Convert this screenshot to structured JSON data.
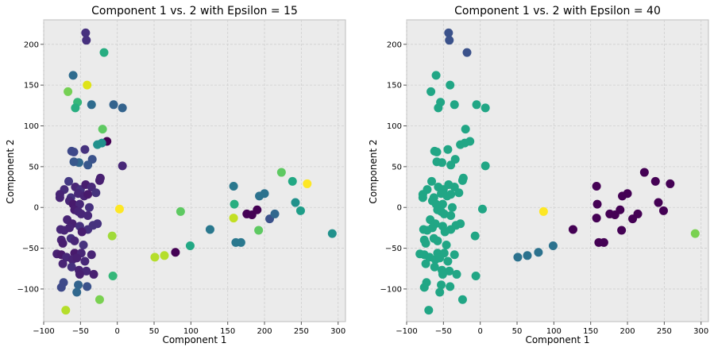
{
  "chart_data": [
    {
      "type": "scatter",
      "title": "Component 1 vs. 2 with Epsilon = 15",
      "xlabel": "Component 1",
      "ylabel": "Component 2",
      "xlim": [
        -100,
        310
      ],
      "ylim": [
        -140,
        230
      ],
      "xticks": [
        -100,
        -50,
        0,
        50,
        100,
        150,
        200,
        250,
        300
      ],
      "yticks": [
        -100,
        -50,
        0,
        50,
        100,
        150,
        200
      ],
      "grid": true,
      "points": [
        [
          -43,
          214,
          "#46307e"
        ],
        [
          -42,
          205,
          "#46307e"
        ],
        [
          -18,
          190,
          "#27ad81"
        ],
        [
          -60,
          162,
          "#2f6c8e"
        ],
        [
          -41,
          150,
          "#dfe318"
        ],
        [
          -67,
          142,
          "#75d054"
        ],
        [
          -54,
          129,
          "#35b779"
        ],
        [
          -57,
          122,
          "#28ae80"
        ],
        [
          -35,
          126,
          "#2f6c8e"
        ],
        [
          -5,
          126,
          "#33638d"
        ],
        [
          7,
          122,
          "#33638d"
        ],
        [
          -20,
          96,
          "#5ec962"
        ],
        [
          -14,
          81,
          "#440154"
        ],
        [
          -27,
          77,
          "#21918c"
        ],
        [
          -21,
          79,
          "#21918c"
        ],
        [
          -62,
          69,
          "#3e4989"
        ],
        [
          -59,
          68,
          "#3e4989"
        ],
        [
          -44,
          71,
          "#46327e"
        ],
        [
          -34,
          59,
          "#3b528b"
        ],
        [
          -52,
          55,
          "#31688e"
        ],
        [
          -59,
          56,
          "#38588c"
        ],
        [
          -40,
          52,
          "#38588c"
        ],
        [
          7,
          51,
          "#482878"
        ],
        [
          -72,
          22,
          "#472c7a"
        ],
        [
          -66,
          32,
          "#443983"
        ],
        [
          -57,
          25,
          "#482677"
        ],
        [
          -50,
          22,
          "#46307e"
        ],
        [
          -43,
          28,
          "#481d6f"
        ],
        [
          -35,
          25,
          "#482878"
        ],
        [
          -24,
          33,
          "#481f70"
        ],
        [
          -23,
          36,
          "#482071"
        ],
        [
          -78,
          16,
          "#482475"
        ],
        [
          -78,
          12,
          "#482475"
        ],
        [
          -63,
          12,
          "#46327e"
        ],
        [
          -53,
          17,
          "#482878"
        ],
        [
          -45,
          14,
          "#482475"
        ],
        [
          -40,
          16,
          "#481a6c"
        ],
        [
          -29,
          18,
          "#45337d"
        ],
        [
          -65,
          8,
          "#482677"
        ],
        [
          -60,
          4,
          "#481a6c"
        ],
        [
          -51,
          4,
          "#482878"
        ],
        [
          -38,
          0,
          "#46307e"
        ],
        [
          -58,
          -3,
          "#481d6f"
        ],
        [
          -53,
          -5,
          "#482475"
        ],
        [
          -49,
          -8,
          "#482677"
        ],
        [
          -40,
          -10,
          "#482878"
        ],
        [
          -68,
          -15,
          "#482475"
        ],
        [
          -61,
          -20,
          "#482071"
        ],
        [
          -51,
          -23,
          "#46307e"
        ],
        [
          -40,
          -27,
          "#46307e"
        ],
        [
          -33,
          -22,
          "#46337e"
        ],
        [
          -27,
          -20,
          "#46327e"
        ],
        [
          -77,
          -27,
          "#482878"
        ],
        [
          -72,
          -28,
          "#482677"
        ],
        [
          -65,
          -25,
          "#482475"
        ],
        [
          -48,
          -30,
          "#481d6f"
        ],
        [
          -63,
          -38,
          "#46307e"
        ],
        [
          -58,
          -41,
          "#482677"
        ],
        [
          -76,
          -40,
          "#482475"
        ],
        [
          -74,
          -44,
          "#481d6f"
        ],
        [
          -46,
          -46,
          "#46327e"
        ],
        [
          -82,
          -57,
          "#482071"
        ],
        [
          -76,
          -58,
          "#481a6c"
        ],
        [
          -69,
          -61,
          "#482878"
        ],
        [
          -58,
          -56,
          "#481a6c"
        ],
        [
          -49,
          -56,
          "#482677"
        ],
        [
          -35,
          -58,
          "#482475"
        ],
        [
          -61,
          -64,
          "#482475"
        ],
        [
          -55,
          -62,
          "#482071"
        ],
        [
          -44,
          -66,
          "#482878"
        ],
        [
          -74,
          -69,
          "#482475"
        ],
        [
          -62,
          -73,
          "#46307e"
        ],
        [
          -52,
          -77,
          "#482475"
        ],
        [
          -42,
          -78,
          "#482878"
        ],
        [
          -51,
          -82,
          "#482071"
        ],
        [
          -32,
          -82,
          "#482071"
        ],
        [
          -73,
          -92,
          "#3e4989"
        ],
        [
          -76,
          -98,
          "#3e4989"
        ],
        [
          -53,
          -95,
          "#33638d"
        ],
        [
          -41,
          -97,
          "#3b528b"
        ],
        [
          -55,
          -104,
          "#31688e"
        ],
        [
          -70,
          -126,
          "#b5de2b"
        ],
        [
          -24,
          -113,
          "#7ad151"
        ],
        [
          -7,
          -35,
          "#a0da39"
        ],
        [
          3,
          -2,
          "#fde725"
        ],
        [
          -6,
          -84,
          "#35b779"
        ],
        [
          51,
          -61,
          "#b5de2b"
        ],
        [
          64,
          -59,
          "#b5de2b"
        ],
        [
          79,
          -55,
          "#440154"
        ],
        [
          86,
          -5,
          "#5ec962"
        ],
        [
          99,
          -47,
          "#22a884"
        ],
        [
          126,
          -27,
          "#2a788e"
        ],
        [
          158,
          26,
          "#2a788e"
        ],
        [
          159,
          4,
          "#28ae80"
        ],
        [
          158,
          -13,
          "#c2df23"
        ],
        [
          161,
          -43,
          "#2a788e"
        ],
        [
          168,
          -43,
          "#2a788e"
        ],
        [
          176,
          -8,
          "#440154"
        ],
        [
          183,
          -9,
          "#440154"
        ],
        [
          190,
          -3,
          "#440154"
        ],
        [
          192,
          -28,
          "#5ec962"
        ],
        [
          193,
          14,
          "#2c728e"
        ],
        [
          200,
          17,
          "#2c728e"
        ],
        [
          207,
          -14,
          "#3b528b"
        ],
        [
          214,
          -8,
          "#31688e"
        ],
        [
          223,
          43,
          "#5ec962"
        ],
        [
          238,
          32,
          "#22a884"
        ],
        [
          242,
          6,
          "#21918c"
        ],
        [
          249,
          -4,
          "#1f9e89"
        ],
        [
          258,
          29,
          "#fde725"
        ],
        [
          292,
          -32,
          "#21918c"
        ]
      ]
    },
    {
      "type": "scatter",
      "title": "Component 1 vs. 2 with Epsilon = 40",
      "xlabel": "Component 1",
      "ylabel": "Component 2",
      "xlim": [
        -100,
        310
      ],
      "ylim": [
        -140,
        230
      ],
      "xticks": [
        -100,
        -50,
        0,
        50,
        100,
        150,
        200,
        250,
        300
      ],
      "yticks": [
        -100,
        -50,
        0,
        50,
        100,
        150,
        200
      ],
      "grid": true,
      "points": [
        [
          -43,
          214,
          "#3b528b"
        ],
        [
          -42,
          205,
          "#3b528b"
        ],
        [
          -18,
          190,
          "#3b528b"
        ],
        [
          -60,
          162,
          "#21a685"
        ],
        [
          -41,
          150,
          "#21a685"
        ],
        [
          -67,
          142,
          "#21a685"
        ],
        [
          -54,
          129,
          "#21a685"
        ],
        [
          -57,
          122,
          "#21a685"
        ],
        [
          -35,
          126,
          "#21a685"
        ],
        [
          -5,
          126,
          "#21a685"
        ],
        [
          7,
          122,
          "#21a685"
        ],
        [
          -20,
          96,
          "#21a685"
        ],
        [
          -14,
          81,
          "#21a685"
        ],
        [
          -27,
          77,
          "#21a685"
        ],
        [
          -21,
          79,
          "#21a685"
        ],
        [
          -62,
          69,
          "#21a685"
        ],
        [
          -59,
          68,
          "#21a685"
        ],
        [
          -44,
          71,
          "#21a685"
        ],
        [
          -34,
          59,
          "#21a685"
        ],
        [
          -52,
          55,
          "#21a685"
        ],
        [
          -59,
          56,
          "#21a685"
        ],
        [
          -40,
          52,
          "#21a685"
        ],
        [
          7,
          51,
          "#21a685"
        ],
        [
          -72,
          22,
          "#21a685"
        ],
        [
          -66,
          32,
          "#21a685"
        ],
        [
          -57,
          25,
          "#21a685"
        ],
        [
          -50,
          22,
          "#21a685"
        ],
        [
          -43,
          28,
          "#21a685"
        ],
        [
          -35,
          25,
          "#21a685"
        ],
        [
          -24,
          33,
          "#21a685"
        ],
        [
          -23,
          36,
          "#21a685"
        ],
        [
          -78,
          16,
          "#21a685"
        ],
        [
          -78,
          12,
          "#21a685"
        ],
        [
          -63,
          12,
          "#21a685"
        ],
        [
          -53,
          17,
          "#21a685"
        ],
        [
          -45,
          14,
          "#21a685"
        ],
        [
          -40,
          16,
          "#21a685"
        ],
        [
          -29,
          18,
          "#21a685"
        ],
        [
          -65,
          8,
          "#21a685"
        ],
        [
          -60,
          4,
          "#21a685"
        ],
        [
          -51,
          4,
          "#21a685"
        ],
        [
          -38,
          0,
          "#21a685"
        ],
        [
          -58,
          -3,
          "#21a685"
        ],
        [
          -53,
          -5,
          "#21a685"
        ],
        [
          -49,
          -8,
          "#21a685"
        ],
        [
          -40,
          -10,
          "#21a685"
        ],
        [
          -68,
          -15,
          "#21a685"
        ],
        [
          -61,
          -20,
          "#21a685"
        ],
        [
          -51,
          -23,
          "#21a685"
        ],
        [
          -40,
          -27,
          "#21a685"
        ],
        [
          -33,
          -22,
          "#21a685"
        ],
        [
          -27,
          -20,
          "#21a685"
        ],
        [
          -77,
          -27,
          "#21a685"
        ],
        [
          -72,
          -28,
          "#21a685"
        ],
        [
          -65,
          -25,
          "#21a685"
        ],
        [
          -48,
          -30,
          "#21a685"
        ],
        [
          -63,
          -38,
          "#21a685"
        ],
        [
          -58,
          -41,
          "#21a685"
        ],
        [
          -76,
          -40,
          "#21a685"
        ],
        [
          -74,
          -44,
          "#21a685"
        ],
        [
          -46,
          -46,
          "#21a685"
        ],
        [
          -82,
          -57,
          "#21a685"
        ],
        [
          -76,
          -58,
          "#21a685"
        ],
        [
          -69,
          -61,
          "#21a685"
        ],
        [
          -58,
          -56,
          "#21a685"
        ],
        [
          -49,
          -56,
          "#21a685"
        ],
        [
          -35,
          -58,
          "#21a685"
        ],
        [
          -61,
          -64,
          "#21a685"
        ],
        [
          -55,
          -62,
          "#21a685"
        ],
        [
          -44,
          -66,
          "#21a685"
        ],
        [
          -74,
          -69,
          "#21a685"
        ],
        [
          -62,
          -73,
          "#21a685"
        ],
        [
          -52,
          -77,
          "#21a685"
        ],
        [
          -42,
          -78,
          "#21a685"
        ],
        [
          -51,
          -82,
          "#21a685"
        ],
        [
          -32,
          -82,
          "#21a685"
        ],
        [
          -73,
          -92,
          "#21a685"
        ],
        [
          -76,
          -98,
          "#21a685"
        ],
        [
          -53,
          -95,
          "#21a685"
        ],
        [
          -41,
          -97,
          "#21a685"
        ],
        [
          -55,
          -104,
          "#21a685"
        ],
        [
          -70,
          -126,
          "#21a685"
        ],
        [
          -24,
          -113,
          "#21a685"
        ],
        [
          -7,
          -35,
          "#21a685"
        ],
        [
          3,
          -2,
          "#21a685"
        ],
        [
          -6,
          -84,
          "#21a685"
        ],
        [
          51,
          -61,
          "#2c728e"
        ],
        [
          64,
          -59,
          "#2c728e"
        ],
        [
          79,
          -55,
          "#2c728e"
        ],
        [
          86,
          -5,
          "#fde725"
        ],
        [
          99,
          -47,
          "#2c728e"
        ],
        [
          126,
          -27,
          "#440154"
        ],
        [
          158,
          26,
          "#440154"
        ],
        [
          159,
          4,
          "#440154"
        ],
        [
          158,
          -13,
          "#440154"
        ],
        [
          161,
          -43,
          "#440154"
        ],
        [
          168,
          -43,
          "#440154"
        ],
        [
          176,
          -8,
          "#440154"
        ],
        [
          183,
          -9,
          "#440154"
        ],
        [
          190,
          -3,
          "#440154"
        ],
        [
          192,
          -28,
          "#440154"
        ],
        [
          193,
          14,
          "#440154"
        ],
        [
          200,
          17,
          "#440154"
        ],
        [
          207,
          -14,
          "#440154"
        ],
        [
          214,
          -8,
          "#440154"
        ],
        [
          223,
          43,
          "#440154"
        ],
        [
          238,
          32,
          "#440154"
        ],
        [
          242,
          6,
          "#440154"
        ],
        [
          249,
          -4,
          "#440154"
        ],
        [
          258,
          29,
          "#440154"
        ],
        [
          292,
          -32,
          "#7ad151"
        ]
      ]
    }
  ]
}
